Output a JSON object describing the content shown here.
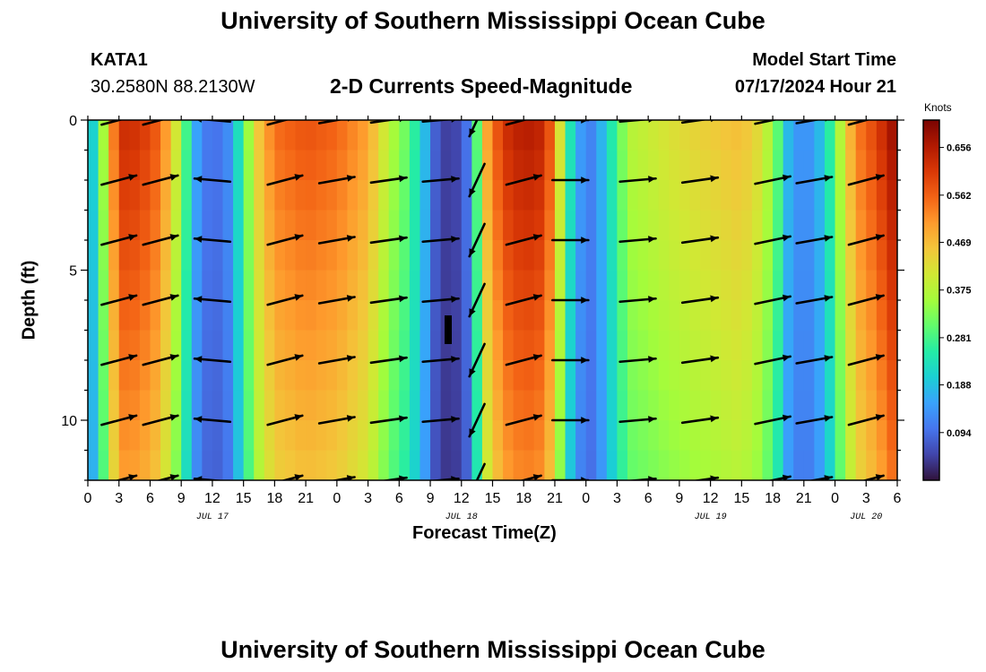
{
  "header": {
    "title": "University of Southern Mississippi Ocean Cube",
    "station": "KATA1",
    "coordinates": "30.2580N  88.2130W",
    "subtitle": "2-D Currents Speed-Magnitude",
    "model_start_label": "Model Start Time",
    "model_start_time": "07/17/2024 Hour 21"
  },
  "footer": {
    "title": "University of Southern Mississippi Ocean Cube"
  },
  "chart_data": {
    "type": "heatmap",
    "title": "2-D Currents Speed-Magnitude",
    "xlabel": "Forecast Time(Z)",
    "ylabel": "Depth (ft)",
    "x_tick_labels": [
      "0",
      "3",
      "6",
      "9",
      "12",
      "15",
      "18",
      "21",
      "0",
      "3",
      "6",
      "9",
      "12",
      "15",
      "18",
      "21",
      "0",
      "3",
      "6",
      "9",
      "12",
      "15",
      "18",
      "21",
      "0",
      "3",
      "6"
    ],
    "date_labels": [
      {
        "label": "JUL 17",
        "hour": 12
      },
      {
        "label": "JUL 18",
        "hour": 36
      },
      {
        "label": "JUL 19",
        "hour": 60
      },
      {
        "label": "JUL 20",
        "hour": 75
      }
    ],
    "x_range_hours": [
      0,
      78
    ],
    "y_ticks": [
      0,
      5,
      10
    ],
    "y_range_ft": [
      0,
      12
    ],
    "colorbar": {
      "title": "Knots",
      "ticks": [
        "0.656",
        "0.562",
        "0.469",
        "0.375",
        "0.281",
        "0.188",
        "0.094"
      ],
      "tick_values": [
        0.656,
        0.562,
        0.469,
        0.375,
        0.281,
        0.188,
        0.094
      ],
      "range": [
        0.0,
        0.71
      ],
      "stops": [
        "#30123b",
        "#4145ab",
        "#4675ed",
        "#39a2fc",
        "#1bcfd4",
        "#24eca6",
        "#61fc6c",
        "#a4fc3b",
        "#d1e834",
        "#f3c63a",
        "#fe9b2d",
        "#f36315",
        "#d93806",
        "#b11901",
        "#7a0402"
      ]
    },
    "depth_rows_ft": [
      0.5,
      1.5,
      2.5,
      3.5,
      4.5,
      5.5,
      6.5,
      7.5,
      8.5,
      9.5,
      10.5,
      11.5
    ],
    "speed_profile": [
      {
        "hour": 0,
        "speed": 0.15
      },
      {
        "hour": 1,
        "speed": 0.27
      },
      {
        "hour": 2,
        "speed": 0.45
      },
      {
        "hour": 3,
        "speed": 0.63
      },
      {
        "hour": 5,
        "speed": 0.62
      },
      {
        "hour": 7,
        "speed": 0.56
      },
      {
        "hour": 8,
        "speed": 0.46
      },
      {
        "hour": 9,
        "speed": 0.36
      },
      {
        "hour": 10,
        "speed": 0.2
      },
      {
        "hour": 11,
        "speed": 0.11
      },
      {
        "hour": 13,
        "speed": 0.1
      },
      {
        "hour": 14,
        "speed": 0.16
      },
      {
        "hour": 15,
        "speed": 0.3
      },
      {
        "hour": 16.5,
        "speed": 0.46
      },
      {
        "hour": 18,
        "speed": 0.55
      },
      {
        "hour": 21,
        "speed": 0.58
      },
      {
        "hour": 24,
        "speed": 0.56
      },
      {
        "hour": 27,
        "speed": 0.5
      },
      {
        "hour": 29,
        "speed": 0.38
      },
      {
        "hour": 31,
        "speed": 0.3
      },
      {
        "hour": 32.5,
        "speed": 0.18
      },
      {
        "hour": 33.5,
        "speed": 0.08
      },
      {
        "hour": 35,
        "speed": 0.03
      },
      {
        "hour": 36.5,
        "speed": 0.1
      },
      {
        "hour": 37.5,
        "speed": 0.3
      },
      {
        "hour": 38.5,
        "speed": 0.5
      },
      {
        "hour": 40,
        "speed": 0.62
      },
      {
        "hour": 42,
        "speed": 0.66
      },
      {
        "hour": 44,
        "speed": 0.64
      },
      {
        "hour": 45,
        "speed": 0.52
      },
      {
        "hour": 46,
        "speed": 0.32
      },
      {
        "hour": 47,
        "speed": 0.16
      },
      {
        "hour": 48.5,
        "speed": 0.12
      },
      {
        "hour": 50,
        "speed": 0.2
      },
      {
        "hour": 51,
        "speed": 0.3
      },
      {
        "hour": 52.5,
        "speed": 0.38
      },
      {
        "hour": 56,
        "speed": 0.42
      },
      {
        "hour": 60,
        "speed": 0.45
      },
      {
        "hour": 63,
        "speed": 0.47
      },
      {
        "hour": 65,
        "speed": 0.42
      },
      {
        "hour": 66.5,
        "speed": 0.3
      },
      {
        "hour": 67.5,
        "speed": 0.18
      },
      {
        "hour": 69,
        "speed": 0.12
      },
      {
        "hour": 70.5,
        "speed": 0.18
      },
      {
        "hour": 72,
        "speed": 0.3
      },
      {
        "hour": 73,
        "speed": 0.45
      },
      {
        "hour": 74.5,
        "speed": 0.55
      },
      {
        "hour": 76,
        "speed": 0.6
      },
      {
        "hour": 78,
        "speed": 0.7
      }
    ],
    "arrow_columns": [
      {
        "hour": 3,
        "direction_deg": 15
      },
      {
        "hour": 7,
        "direction_deg": 15
      },
      {
        "hour": 12,
        "direction_deg": 175
      },
      {
        "hour": 19,
        "direction_deg": 15
      },
      {
        "hour": 24,
        "direction_deg": 10
      },
      {
        "hour": 29,
        "direction_deg": 8
      },
      {
        "hour": 34,
        "direction_deg": 5
      },
      {
        "hour": 37.5,
        "direction_deg": 245
      },
      {
        "hour": 42,
        "direction_deg": 15
      },
      {
        "hour": 46.5,
        "direction_deg": 0
      },
      {
        "hour": 53,
        "direction_deg": 5
      },
      {
        "hour": 59,
        "direction_deg": 8
      },
      {
        "hour": 66,
        "direction_deg": 12
      },
      {
        "hour": 70,
        "direction_deg": 10
      },
      {
        "hour": 75,
        "direction_deg": 15
      }
    ],
    "arrow_depths_ft": [
      0,
      2,
      4,
      6,
      8,
      10,
      12
    ]
  }
}
